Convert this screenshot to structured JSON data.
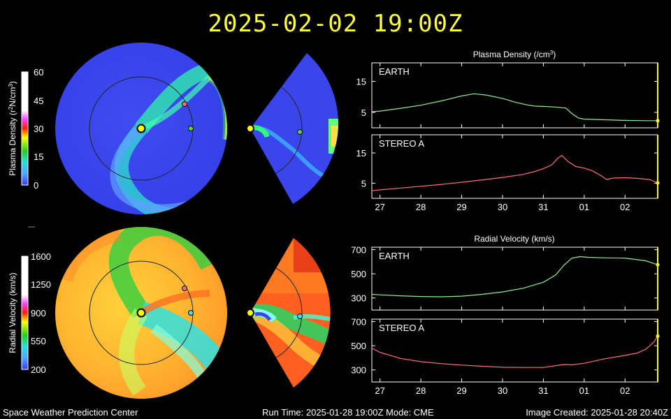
{
  "header": {
    "timestamp": "2025-02-02 19:00Z"
  },
  "colors": {
    "title": "#ffff40",
    "earth_line": "#90ee90",
    "stereo_line": "#ff7070",
    "marker_earth": "#40e040",
    "marker_stereo": "#ff7070",
    "sun": "#ffff00",
    "axis": "#ffffff",
    "now_line": "#ffff00"
  },
  "maps": {
    "density": {
      "colorbar_label_html_parts": [
        "Plasma Density (r",
        "2",
        "N/cm",
        "3",
        ")"
      ],
      "colorbar_ticks": [
        "60",
        "45",
        "30",
        "15",
        "0"
      ]
    },
    "velocity": {
      "colorbar_label": "Radial Velocity (km/s)",
      "colorbar_ticks": [
        "1600",
        "1250",
        "900",
        "550",
        "200"
      ]
    }
  },
  "footer": {
    "left": "Space Weather Prediction Center",
    "center": "Run Time: 2025-01-28 19:00Z  Mode: CME",
    "right": "Image Created: 2025-01-28 20:40Z"
  },
  "chart_data": [
    {
      "type": "line",
      "title_parts": [
        "Plasma Density (/cm",
        "3",
        ")"
      ],
      "panels": [
        {
          "label": "EARTH",
          "ylim": [
            0,
            21
          ],
          "yticks": [
            "15",
            "5"
          ],
          "ytick_values": [
            15,
            5
          ],
          "series": [
            {
              "x": [
                26.8,
                27.0,
                27.5,
                28.0,
                28.5,
                29.0,
                29.3,
                29.6,
                30.0,
                30.3,
                30.6,
                30.8,
                31.0,
                31.3,
                31.55,
                31.7,
                31.85,
                32.0,
                32.5,
                33.0,
                33.5,
                33.8
              ],
              "y": [
                5.2,
                5.4,
                6.3,
                7.3,
                8.7,
                10.3,
                11.0,
                10.6,
                9.5,
                8.3,
                7.4,
                7.0,
                6.9,
                6.7,
                6.4,
                4.6,
                3.2,
                2.8,
                2.6,
                2.4,
                2.3,
                2.3
              ]
            }
          ]
        },
        {
          "label": "STEREO A",
          "ylim": [
            0,
            21
          ],
          "yticks": [
            "15",
            "5"
          ],
          "ytick_values": [
            15,
            5
          ],
          "series": [
            {
              "x": [
                26.8,
                27.0,
                27.5,
                28.0,
                28.5,
                29.0,
                29.5,
                30.0,
                30.5,
                30.8,
                31.0,
                31.2,
                31.35,
                31.45,
                31.6,
                31.8,
                32.0,
                32.2,
                32.4,
                32.55,
                32.7,
                33.0,
                33.3,
                33.6,
                33.8
              ],
              "y": [
                2.5,
                2.8,
                3.4,
                4.0,
                4.6,
                5.3,
                6.1,
                6.9,
                7.9,
                8.9,
                9.8,
                11.0,
                13.2,
                14.2,
                12.2,
                10.5,
                10.0,
                9.1,
                7.6,
                6.2,
                6.7,
                6.8,
                6.6,
                6.2,
                5.1
              ]
            }
          ]
        }
      ],
      "xtick_labels": [
        "27",
        "28",
        "29",
        "30",
        "31",
        "01",
        "02"
      ]
    },
    {
      "type": "line",
      "title": "Radial Velocity (km/s)",
      "panels": [
        {
          "label": "EARTH",
          "ylim": [
            200,
            720
          ],
          "yticks": [
            "700",
            "500",
            "300"
          ],
          "ytick_values": [
            700,
            500,
            300
          ],
          "series": [
            {
              "x": [
                26.8,
                27.0,
                27.5,
                28.0,
                28.5,
                29.0,
                29.5,
                30.0,
                30.5,
                31.0,
                31.3,
                31.5,
                31.7,
                31.9,
                32.1,
                32.5,
                33.0,
                33.5,
                33.8
              ],
              "y": [
                330,
                326,
                318,
                312,
                310,
                315,
                330,
                350,
                380,
                430,
                490,
                570,
                630,
                642,
                636,
                632,
                630,
                608,
                575
              ]
            }
          ]
        },
        {
          "label": "STEREO A",
          "ylim": [
            200,
            720
          ],
          "yticks": [
            "700",
            "500",
            "300"
          ],
          "ytick_values": [
            700,
            500,
            300
          ],
          "series": [
            {
              "x": [
                26.8,
                27.0,
                27.5,
                28.0,
                28.5,
                29.0,
                29.5,
                30.0,
                30.5,
                31.0,
                31.3,
                31.5,
                31.7,
                32.0,
                32.5,
                33.0,
                33.3,
                33.5,
                33.7,
                33.8
              ],
              "y": [
                480,
                445,
                395,
                368,
                352,
                340,
                330,
                322,
                320,
                320,
                335,
                345,
                342,
                355,
                392,
                420,
                440,
                470,
                528,
                580
              ]
            }
          ]
        }
      ],
      "xtick_labels": [
        "27",
        "28",
        "29",
        "30",
        "31",
        "01",
        "02"
      ]
    }
  ]
}
